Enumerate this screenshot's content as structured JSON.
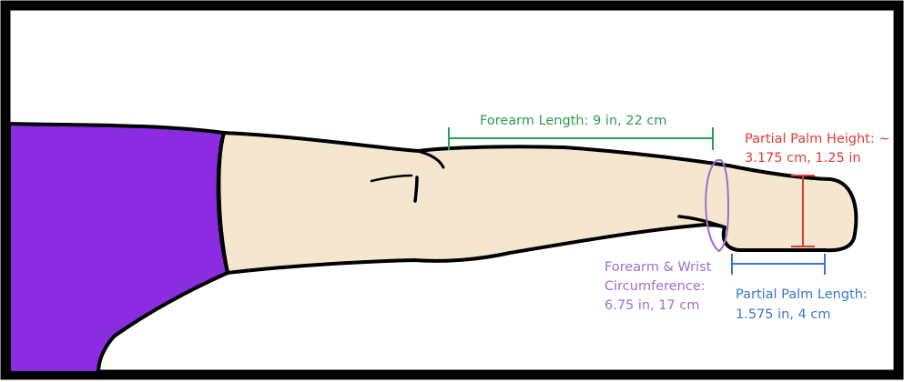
{
  "colors": {
    "frame": "#000000",
    "background": "#ffffff",
    "sleeve": "#8b2be2",
    "skin": "#f5e6cf",
    "outline": "#000000",
    "forearm_length": "#2e9e4f",
    "palm_height": "#e53935",
    "wrist_circumference": "#9b6fd0",
    "palm_length": "#3a78c9"
  },
  "annotations": {
    "forearm_length": {
      "text": "Forearm Length: 9 in, 22 cm"
    },
    "palm_height": {
      "line1": "Partial Palm Height: ~",
      "line2": "3.175 cm, 1.25 in"
    },
    "wrist_circumference": {
      "line1": "Forearm & Wrist",
      "line2": "Circumference:",
      "line3": "6.75 in, 17 cm"
    },
    "palm_length": {
      "line1": "Partial Palm Length:",
      "line2": "1.575 in, 4 cm"
    }
  }
}
